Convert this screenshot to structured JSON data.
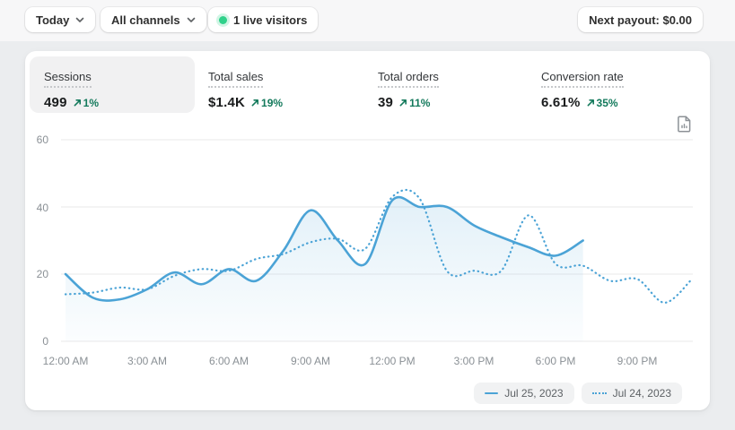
{
  "topbar": {
    "date_range": {
      "label": "Today"
    },
    "channel": {
      "label": "All channels"
    },
    "live_visitors": {
      "label": "1 live visitors"
    },
    "next_payout": {
      "label": "Next payout: $0.00"
    }
  },
  "metrics": [
    {
      "label": "Sessions",
      "value": "499",
      "delta": "1%",
      "active": true
    },
    {
      "label": "Total sales",
      "value": "$1.4K",
      "delta": "19%",
      "active": false
    },
    {
      "label": "Total orders",
      "value": "39",
      "delta": "11%",
      "active": false
    },
    {
      "label": "Conversion rate",
      "value": "6.61%",
      "delta": "35%",
      "active": false
    }
  ],
  "chart_data": {
    "type": "line",
    "metric": "Sessions",
    "x_ticks": [
      "12:00 AM",
      "3:00 AM",
      "6:00 AM",
      "9:00 AM",
      "12:00 PM",
      "3:00 PM",
      "6:00 PM",
      "9:00 PM"
    ],
    "x_tick_hours": [
      0,
      3,
      6,
      9,
      12,
      15,
      18,
      21
    ],
    "y_ticks": [
      0,
      20,
      40,
      60
    ],
    "ylim": [
      0,
      60
    ],
    "xlim_hours": [
      0,
      23
    ],
    "grid": "horizontal",
    "legend_position": "bottom-right",
    "series": [
      {
        "name": "Jul 25, 2023",
        "style": "solid",
        "color": "#4ba3d6",
        "area_fill": true,
        "hours": [
          0,
          1,
          2,
          3,
          4,
          5,
          6,
          7,
          8,
          9,
          10,
          11,
          12,
          13,
          14,
          15,
          16,
          17,
          18,
          19
        ],
        "values": [
          20,
          13,
          12.5,
          15.5,
          20.5,
          17,
          21.5,
          18,
          27,
          39,
          30,
          23,
          42,
          40,
          40,
          34.5,
          31,
          28,
          25.5,
          30
        ]
      },
      {
        "name": "Jul 24, 2023",
        "style": "dotted",
        "color": "#4ba3d6",
        "area_fill": false,
        "hours": [
          0,
          1,
          2,
          3,
          4,
          5,
          6,
          7,
          8,
          9,
          10,
          11,
          12,
          13,
          14,
          15,
          16,
          17,
          18,
          19,
          20,
          21,
          22,
          23
        ],
        "values": [
          14,
          14.5,
          16,
          15.5,
          19.5,
          21.5,
          21,
          24.5,
          26,
          29.5,
          30.5,
          27.5,
          43,
          42.5,
          21,
          21,
          21,
          37.5,
          23,
          22.5,
          18,
          18.5,
          11.5,
          18.5
        ]
      }
    ]
  },
  "colors": {
    "line_blue": "#4ba3d6",
    "positive_green": "#147a5c",
    "live_dot_green": "#2fd18a",
    "page_background": "#ebedef",
    "card_background": "#ffffff",
    "active_tab_background": "#f1f1f2",
    "axis_text": "#8a9095",
    "gridline": "#ededee"
  }
}
